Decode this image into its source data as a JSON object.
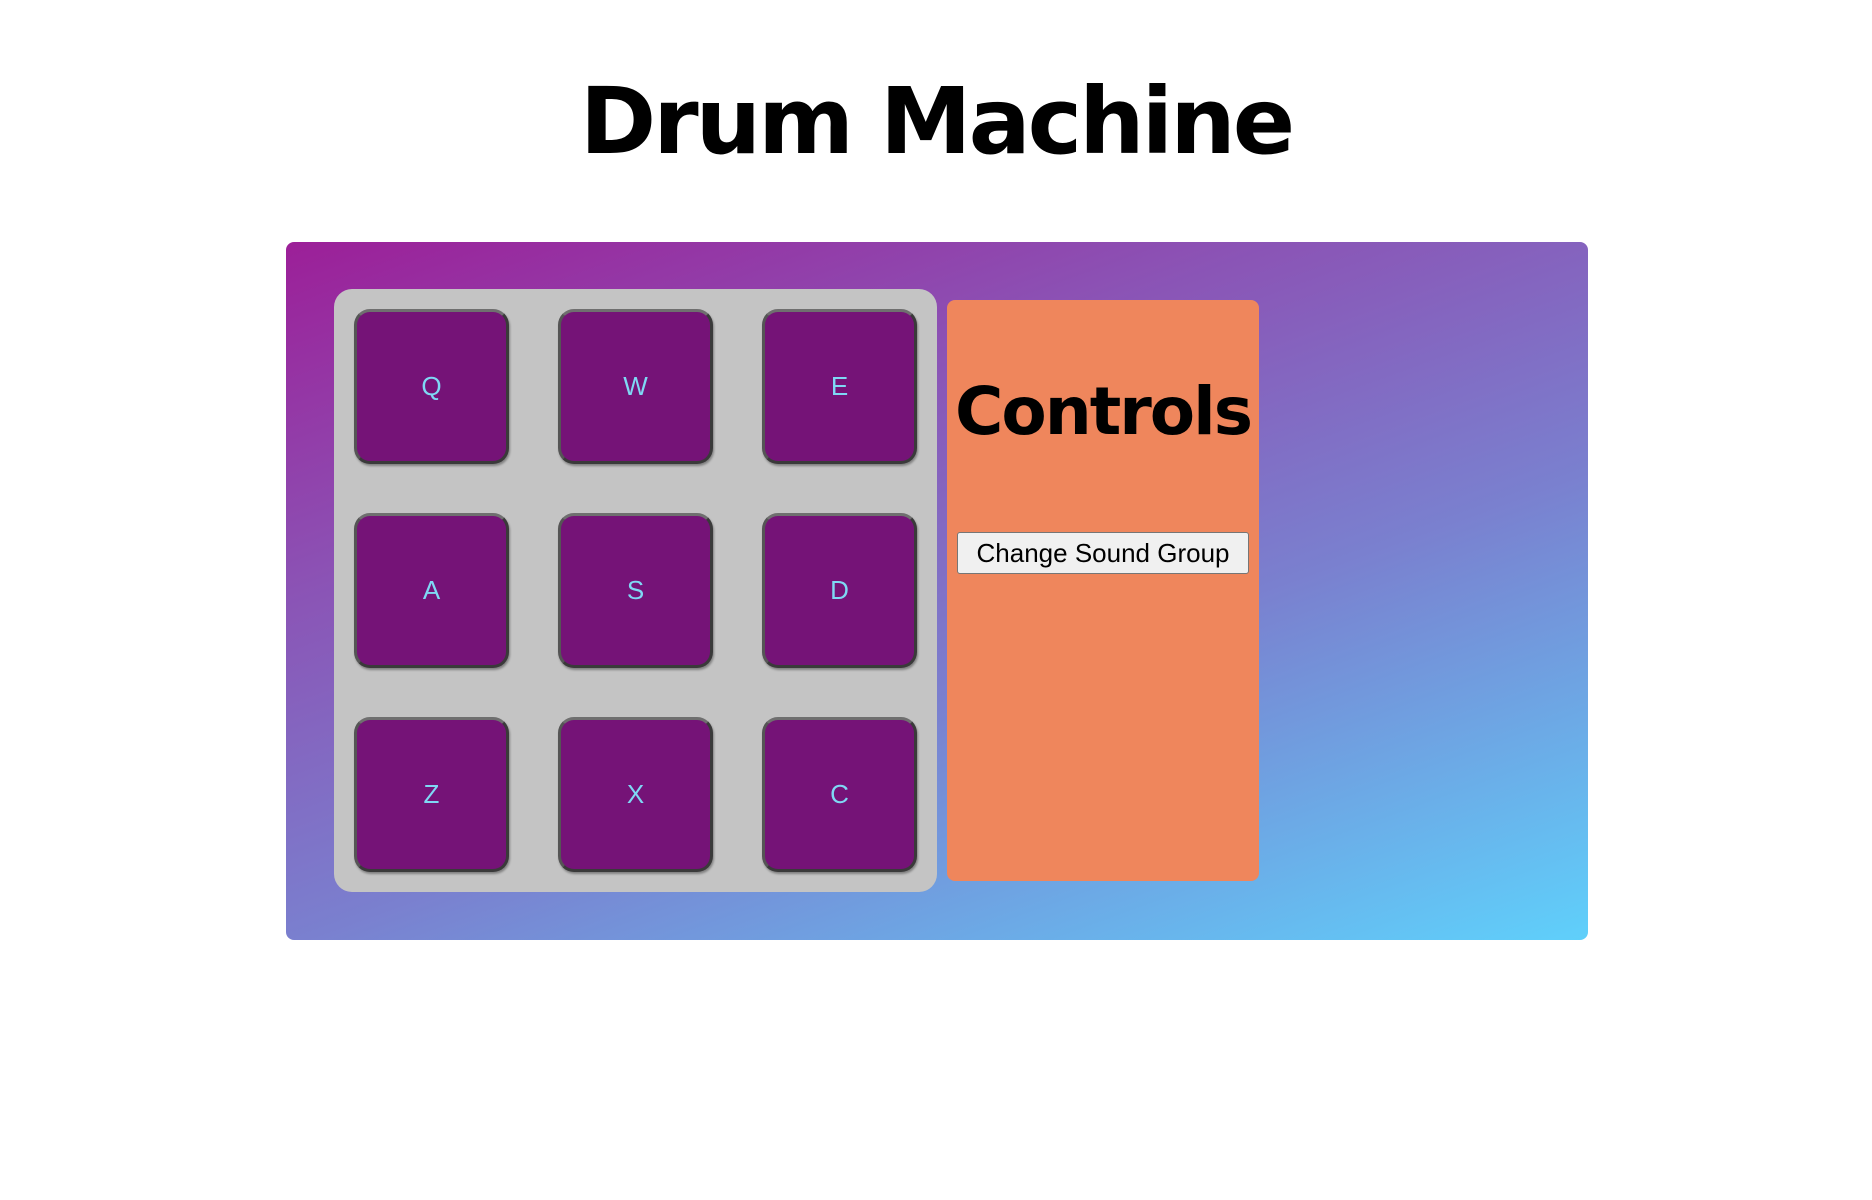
{
  "page": {
    "title": "Drum Machine"
  },
  "pads": [
    {
      "key": "Q"
    },
    {
      "key": "W"
    },
    {
      "key": "E"
    },
    {
      "key": "A"
    },
    {
      "key": "S"
    },
    {
      "key": "D"
    },
    {
      "key": "Z"
    },
    {
      "key": "X"
    },
    {
      "key": "C"
    }
  ],
  "controls": {
    "title": "Controls",
    "change_sound_group_label": "Change Sound Group"
  },
  "colors": {
    "gradient_start": "#9c1f98",
    "gradient_end": "#5fd0fb",
    "pad_bank": "#c4c4c4",
    "pad": "#751377",
    "pad_text": "#7fd8f4",
    "controls_panel": "#ef865c"
  }
}
